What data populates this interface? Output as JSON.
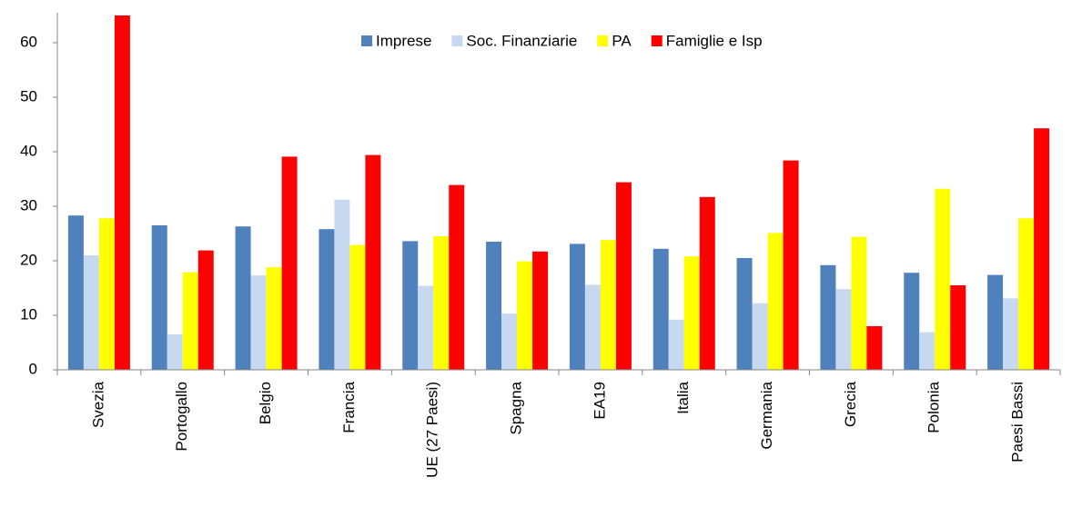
{
  "chart_data": {
    "type": "bar",
    "categories": [
      "Svezia",
      "Portogallo",
      "Belgio",
      "Francia",
      "UE (27 Paesi)",
      "Spagna",
      "EA19",
      "Italia",
      "Germania",
      "Grecia",
      "Polonia",
      "Paesi Bassi"
    ],
    "series": [
      {
        "name": "Imprese",
        "color": "#4f81bd",
        "values": [
          28.3,
          26.5,
          26.3,
          25.8,
          23.6,
          23.5,
          23.1,
          22.2,
          20.5,
          19.2,
          17.8,
          17.4
        ]
      },
      {
        "name": "Soc. Finanziarie",
        "color": "#c6d9f1",
        "values": [
          21,
          6.5,
          17.3,
          31.2,
          15.4,
          10.3,
          15.6,
          9.2,
          12.2,
          14.8,
          6.9,
          13.1
        ]
      },
      {
        "name": "PA",
        "color": "#ffff00",
        "values": [
          27.8,
          17.9,
          18.8,
          22.9,
          24.5,
          19.9,
          23.8,
          20.8,
          25.1,
          24.4,
          33.2,
          27.8
        ]
      },
      {
        "name": "Famiglie e Isp",
        "color": "#ff0000",
        "values": [
          65,
          21.9,
          39.1,
          39.4,
          33.9,
          21.7,
          34.4,
          31.7,
          38.4,
          8,
          15.5,
          44.3
        ]
      }
    ],
    "ylim": [
      0,
      65
    ],
    "yticks": [
      0,
      10,
      20,
      30,
      40,
      50,
      60
    ],
    "grid": false,
    "legend": "top"
  }
}
